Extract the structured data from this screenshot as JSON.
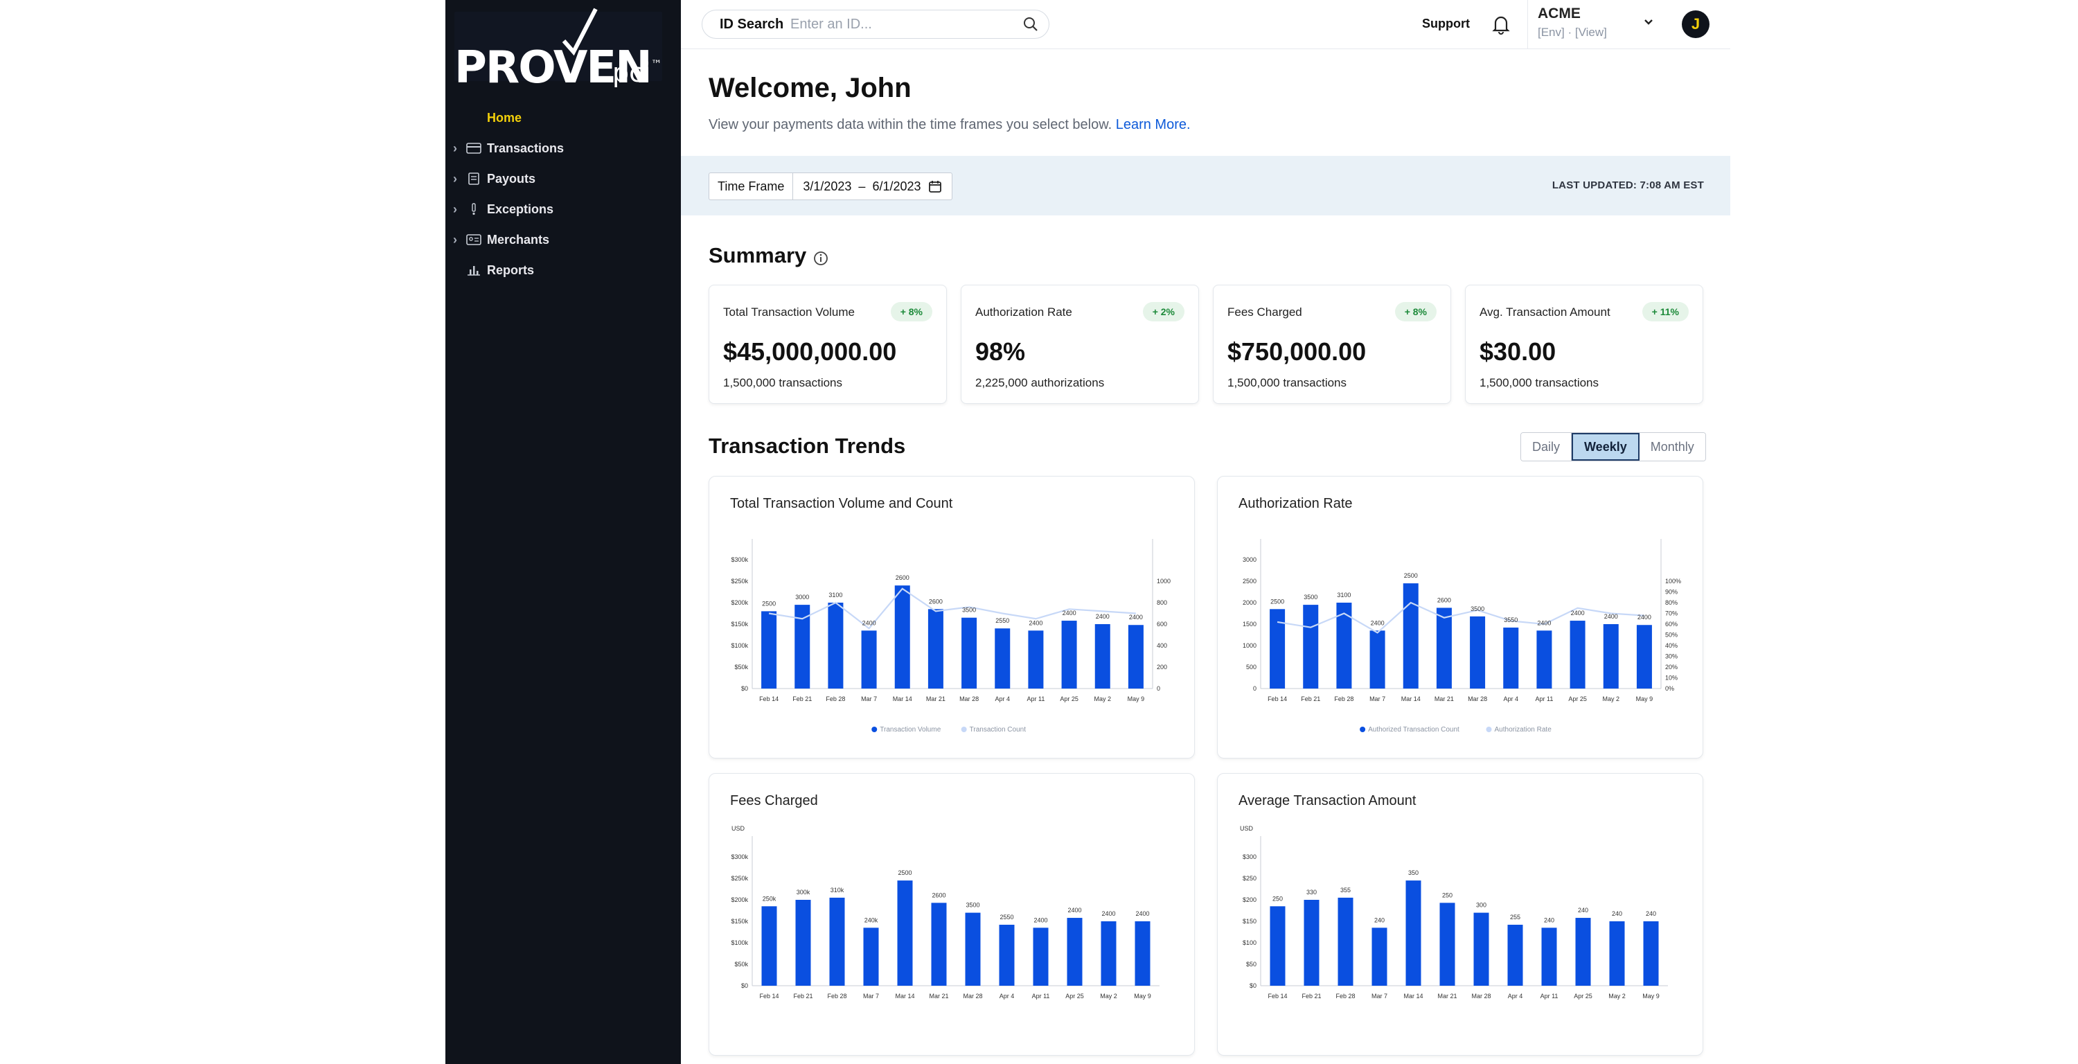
{
  "brand": {
    "logo_text": "PROVEN",
    "logo_sub": "pci",
    "logo_tm": "™"
  },
  "sidebar": {
    "items": [
      {
        "label": "Home",
        "icon": "home",
        "active": true,
        "chevron": false
      },
      {
        "label": "Transactions",
        "icon": "card-icon",
        "chevron": true
      },
      {
        "label": "Payouts",
        "icon": "document-icon",
        "chevron": true
      },
      {
        "label": "Exceptions",
        "icon": "exclamation-icon",
        "chevron": true
      },
      {
        "label": "Merchants",
        "icon": "id-card-icon",
        "chevron": true
      },
      {
        "label": "Reports",
        "icon": "bar-chart-icon",
        "chevron": false
      }
    ]
  },
  "topbar": {
    "search_label": "ID Search",
    "search_placeholder": "Enter an ID...",
    "support": "Support",
    "org_name": "ACME",
    "org_meta": "[Env]  ·  [View]",
    "avatar_initial": "J"
  },
  "main": {
    "welcome": "Welcome, John",
    "subtext": "View your payments data within the time frames you select below.",
    "learn_more": "Learn More.",
    "time_frame_label": "Time Frame",
    "time_frame_start": "3/1/2023",
    "time_frame_sep": "–",
    "time_frame_end": "6/1/2023",
    "last_updated": "LAST UPDATED: 7:08 AM EST",
    "summary_title": "Summary",
    "trends_title": "Transaction Trends"
  },
  "summary_cards": [
    {
      "label": "Total Transaction Volume",
      "badge": "+ 8%",
      "value": "$45,000,000.00",
      "sub": "1,500,000 transactions"
    },
    {
      "label": "Authorization Rate",
      "badge": "+ 2%",
      "value": "98%",
      "sub": "2,225,000 authorizations"
    },
    {
      "label": "Fees Charged",
      "badge": "+ 8%",
      "value": "$750,000.00",
      "sub": "1,500,000 transactions"
    },
    {
      "label": "Avg. Transaction Amount",
      "badge": "+ 11%",
      "value": "$30.00",
      "sub": "1,500,000 transactions"
    }
  ],
  "trend_toggle": {
    "options": [
      "Daily",
      "Weekly",
      "Monthly"
    ],
    "selected": "Weekly"
  },
  "colors": {
    "accent_yellow": "#f3d00a",
    "bar_blue": "#0a4fe0",
    "line_light": "#c7d8f7",
    "badge_green": "#1d8a3a",
    "sidebar_bg": "#0f131b"
  },
  "chart_data": [
    {
      "type": "bar",
      "title": "Total Transaction Volume and Count",
      "categories": [
        "Feb 14",
        "Feb 21",
        "Feb 28",
        "Mar 7",
        "Mar 14",
        "Mar 21",
        "Mar 28",
        "Apr 4",
        "Apr 11",
        "Apr 25",
        "May 2",
        "May 9"
      ],
      "left_ticks": [
        "$0",
        "$50k",
        "$100k",
        "$150k",
        "$200k",
        "$250k",
        "$300k"
      ],
      "right_ticks": [
        "0",
        "200",
        "400",
        "600",
        "800",
        "1000"
      ],
      "ylim": [
        0,
        300000
      ],
      "y2lim": [
        0,
        1200
      ],
      "series": [
        {
          "name": "Transaction Volume",
          "kind": "bar",
          "values": [
            180000,
            195000,
            200000,
            135000,
            240000,
            185000,
            165000,
            140000,
            135000,
            158000,
            150000,
            148000
          ],
          "labels": [
            "2500",
            "3000",
            "3100",
            "2400",
            "2600",
            "2600",
            "3500",
            "2550",
            "2400",
            "2400",
            "2400",
            "2400"
          ]
        },
        {
          "name": "Transaction Count",
          "kind": "line",
          "values": [
            700,
            650,
            800,
            560,
            930,
            720,
            760,
            700,
            650,
            740,
            720,
            700
          ]
        }
      ]
    },
    {
      "type": "bar",
      "title": "Authorization Rate",
      "categories": [
        "Feb 14",
        "Feb 21",
        "Feb 28",
        "Mar 7",
        "Mar 14",
        "Mar 21",
        "Mar 28",
        "Apr 4",
        "Apr 11",
        "Apr 25",
        "May 2",
        "May 9"
      ],
      "left_ticks": [
        "0",
        "500",
        "1000",
        "1500",
        "2000",
        "2500",
        "3000"
      ],
      "right_ticks": [
        "0%",
        "10%",
        "20%",
        "30%",
        "40%",
        "50%",
        "60%",
        "70%",
        "80%",
        "90%",
        "100%"
      ],
      "ylim": [
        0,
        3000
      ],
      "y2lim": [
        0,
        120
      ],
      "series": [
        {
          "name": "Authorized Transaction Count",
          "kind": "bar",
          "values": [
            1850,
            1950,
            2000,
            1350,
            2450,
            1880,
            1680,
            1420,
            1350,
            1580,
            1500,
            1480
          ],
          "labels": [
            "2500",
            "3500",
            "3100",
            "2400",
            "2500",
            "2600",
            "3500",
            "3550",
            "2400",
            "2400",
            "2400",
            "2400"
          ]
        },
        {
          "name": "Authorization Rate",
          "kind": "line",
          "values": [
            62,
            57,
            70,
            52,
            80,
            66,
            73,
            63,
            60,
            75,
            70,
            68
          ]
        }
      ]
    },
    {
      "type": "bar",
      "title": "Fees Charged",
      "unit": "USD",
      "categories": [
        "Feb 14",
        "Feb 21",
        "Feb 28",
        "Mar 7",
        "Mar 14",
        "Mar 21",
        "Mar 28",
        "Apr 4",
        "Apr 11",
        "Apr 25",
        "May 2",
        "May 9"
      ],
      "left_ticks": [
        "$0",
        "$50k",
        "$100k",
        "$150k",
        "$200k",
        "$250k",
        "$300k"
      ],
      "ylim": [
        0,
        300000
      ],
      "series": [
        {
          "name": "Fees Charged",
          "kind": "bar",
          "values": [
            185000,
            200000,
            205000,
            135000,
            245000,
            193000,
            170000,
            142000,
            135000,
            158000,
            150000,
            150000
          ],
          "labels": [
            "250k",
            "300k",
            "310k",
            "240k",
            "2500",
            "2600",
            "3500",
            "2550",
            "2400",
            "2400",
            "2400",
            "2400"
          ]
        }
      ]
    },
    {
      "type": "bar",
      "title": "Average Transaction Amount",
      "unit": "USD",
      "categories": [
        "Feb 14",
        "Feb 21",
        "Feb 28",
        "Mar 7",
        "Mar 14",
        "Mar 21",
        "Mar 28",
        "Apr 4",
        "Apr 11",
        "Apr 25",
        "May 2",
        "May 9"
      ],
      "left_ticks": [
        "$0",
        "$50",
        "$100",
        "$150",
        "$200",
        "$250",
        "$300"
      ],
      "ylim": [
        0,
        300
      ],
      "series": [
        {
          "name": "Average Transaction Amount",
          "kind": "bar",
          "values": [
            185,
            200,
            205,
            135,
            245,
            193,
            170,
            142,
            135,
            158,
            150,
            150
          ],
          "labels": [
            "250",
            "330",
            "355",
            "240",
            "350",
            "250",
            "300",
            "255",
            "240",
            "240",
            "240",
            "240"
          ]
        }
      ]
    }
  ]
}
